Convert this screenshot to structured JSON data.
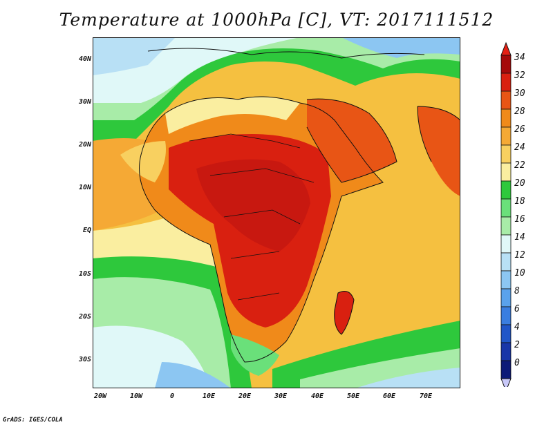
{
  "title": "Temperature at 1000hPa [C], VT: 2017111512",
  "credit": "GrADS: IGES/COLA",
  "lat_ticks": [
    "40N",
    "30N",
    "20N",
    "10N",
    "EQ",
    "10S",
    "20S",
    "30S"
  ],
  "lon_ticks": [
    "20W",
    "10W",
    "0",
    "10E",
    "20E",
    "30E",
    "40E",
    "50E",
    "60E",
    "70E"
  ],
  "colorbar": {
    "labels": [
      "34",
      "32",
      "30",
      "28",
      "26",
      "24",
      "22",
      "20",
      "18",
      "16",
      "14",
      "12",
      "10",
      "8",
      "6",
      "4",
      "2",
      "0"
    ],
    "colors": [
      "#a50a0a",
      "#d92010",
      "#e85515",
      "#f08a1a",
      "#f5a935",
      "#f8d060",
      "#faeea0",
      "#2ec83c",
      "#6ae07a",
      "#a8eca8",
      "#e0f8f8",
      "#b8e0f5",
      "#8cc6f2",
      "#5aa2ec",
      "#3a7ee0",
      "#2056c8",
      "#1836a8",
      "#0c1a78"
    ],
    "over_color": "#e62014",
    "under_color": "#c8c8f8"
  }
}
